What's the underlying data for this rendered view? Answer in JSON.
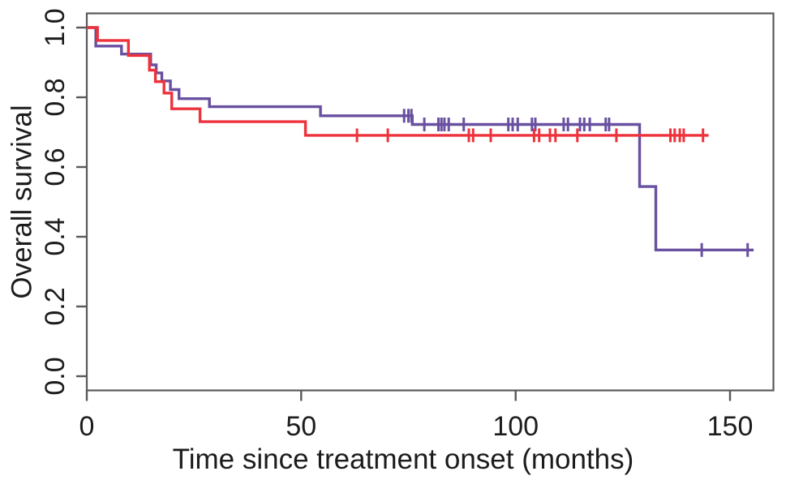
{
  "figure_title": "",
  "chart_data": {
    "type": "line",
    "subtype": "kaplan-meier-step",
    "title": "",
    "xlabel": "Time since treatment onset (months)",
    "ylabel": "Overall survival",
    "xlim": [
      0,
      160
    ],
    "ylim": [
      -0.04,
      1.04
    ],
    "x_tick_values": [
      0,
      50,
      100,
      150
    ],
    "x_tick_labels": [
      "0",
      "50",
      "100",
      "150"
    ],
    "y_tick_values": [
      0,
      0.2,
      0.4,
      0.6,
      0.8,
      1.0
    ],
    "y_tick_labels": [
      "0.0",
      "0.2",
      "0.4",
      "0.6",
      "0.8",
      "1.0"
    ],
    "grid": false,
    "legend_position": "none",
    "frame_color": "#59595c",
    "censor_marker": "vertical-tick",
    "series": [
      {
        "name": "purple-group",
        "color": "#6950a0",
        "end_time": 155.5,
        "steps": [
          [
            0,
            1.0
          ],
          [
            2.1,
            0.947
          ],
          [
            8.1,
            0.924
          ],
          [
            14.9,
            0.893
          ],
          [
            16.2,
            0.87
          ],
          [
            17.5,
            0.847
          ],
          [
            19.5,
            0.822
          ],
          [
            21.5,
            0.796
          ],
          [
            28.6,
            0.773
          ],
          [
            54.5,
            0.747
          ],
          [
            75.9,
            0.722
          ],
          [
            128.9,
            0.544
          ],
          [
            132.7,
            0.362
          ]
        ],
        "censor_times": [
          74.0,
          75.0,
          75.7,
          78.7,
          82.0,
          82.7,
          83.4,
          84.4,
          87.9,
          98.3,
          99.3,
          100.5,
          103.8,
          104.6,
          111.2,
          112.2,
          115.0,
          116.0,
          117.3,
          121.0,
          121.8,
          143.4,
          154.1
        ]
      },
      {
        "name": "red-group",
        "color": "#ee323c",
        "end_time": 145.0,
        "steps": [
          [
            0,
            1.0
          ],
          [
            2.5,
            0.963
          ],
          [
            9.7,
            0.92
          ],
          [
            14.6,
            0.878
          ],
          [
            16.0,
            0.845
          ],
          [
            18.0,
            0.812
          ],
          [
            19.8,
            0.767
          ],
          [
            26.4,
            0.73
          ],
          [
            51.0,
            0.691
          ]
        ],
        "censor_times": [
          63.0,
          70.2,
          89.1,
          90.1,
          94.2,
          104.3,
          105.5,
          108.0,
          109.3,
          114.4,
          123.5,
          136.1,
          137.1,
          138.3,
          139.2,
          143.7
        ]
      }
    ]
  }
}
